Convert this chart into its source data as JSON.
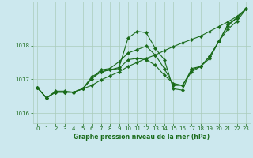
{
  "title": "Graphe pression niveau de la mer (hPa)",
  "background_color": "#cce8ee",
  "grid_color": "#aaccbb",
  "line_color": "#1a6b1a",
  "xlim": [
    -0.5,
    23.5
  ],
  "ylim": [
    1015.7,
    1019.3
  ],
  "yticks": [
    1016,
    1017,
    1018
  ],
  "xticks": [
    0,
    1,
    2,
    3,
    4,
    5,
    6,
    7,
    8,
    9,
    10,
    11,
    12,
    13,
    14,
    15,
    16,
    17,
    18,
    19,
    20,
    21,
    22,
    23
  ],
  "series": [
    [
      1016.75,
      1016.45,
      1016.65,
      1016.65,
      1016.62,
      1016.72,
      1016.82,
      1016.98,
      1017.1,
      1017.22,
      1017.38,
      1017.5,
      1017.62,
      1017.72,
      1017.85,
      1017.97,
      1018.08,
      1018.18,
      1018.28,
      1018.42,
      1018.56,
      1018.7,
      1018.86,
      1019.08
    ],
    [
      1016.75,
      1016.45,
      1016.62,
      1016.62,
      1016.62,
      1016.72,
      1017.02,
      1017.22,
      1017.28,
      1017.35,
      1018.22,
      1018.42,
      1018.38,
      1017.92,
      1017.58,
      1016.72,
      1016.68,
      1017.32,
      1017.38,
      1017.62,
      1018.12,
      1018.62,
      1018.82,
      1019.08
    ],
    [
      1016.75,
      1016.45,
      1016.62,
      1016.62,
      1016.62,
      1016.72,
      1017.02,
      1017.28,
      1017.32,
      1017.52,
      1017.78,
      1017.88,
      1017.98,
      1017.72,
      1017.32,
      1016.82,
      1016.82,
      1017.28,
      1017.38,
      1017.68,
      1018.12,
      1018.58,
      1018.82,
      1019.08
    ],
    [
      1016.75,
      1016.45,
      1016.62,
      1016.62,
      1016.62,
      1016.72,
      1017.08,
      1017.22,
      1017.28,
      1017.32,
      1017.58,
      1017.62,
      1017.58,
      1017.42,
      1017.12,
      1016.88,
      1016.82,
      1017.22,
      1017.38,
      1017.68,
      1018.12,
      1018.48,
      1018.72,
      1019.08
    ]
  ]
}
